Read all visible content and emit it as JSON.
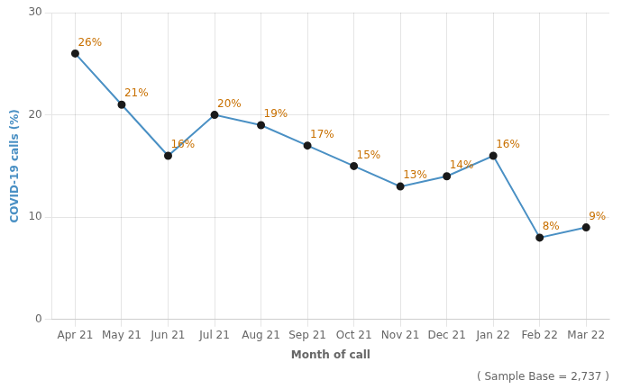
{
  "chart_data": {
    "type": "line",
    "categories": [
      "Apr 21",
      "May 21",
      "Jun 21",
      "Jul 21",
      "Aug 21",
      "Sep 21",
      "Oct 21",
      "Nov 21",
      "Dec 21",
      "Jan 22",
      "Feb 22",
      "Mar 22"
    ],
    "values": [
      26,
      21,
      16,
      20,
      19,
      17,
      15,
      13,
      14,
      16,
      8,
      9
    ],
    "value_labels": [
      "26%",
      "21%",
      "16%",
      "20%",
      "19%",
      "17%",
      "15%",
      "13%",
      "14%",
      "16%",
      "8%",
      "9%"
    ],
    "data_labels": true,
    "color": "#4a90c4",
    "marker": "circle",
    "xlabel": "Month of call",
    "ylabel": "COVID-19 calls (%)",
    "ylim": [
      0,
      30
    ],
    "yticks": [
      0,
      10,
      20,
      30
    ],
    "grid": true,
    "annotations": [
      "( Sample Base = 2,737 )"
    ]
  }
}
